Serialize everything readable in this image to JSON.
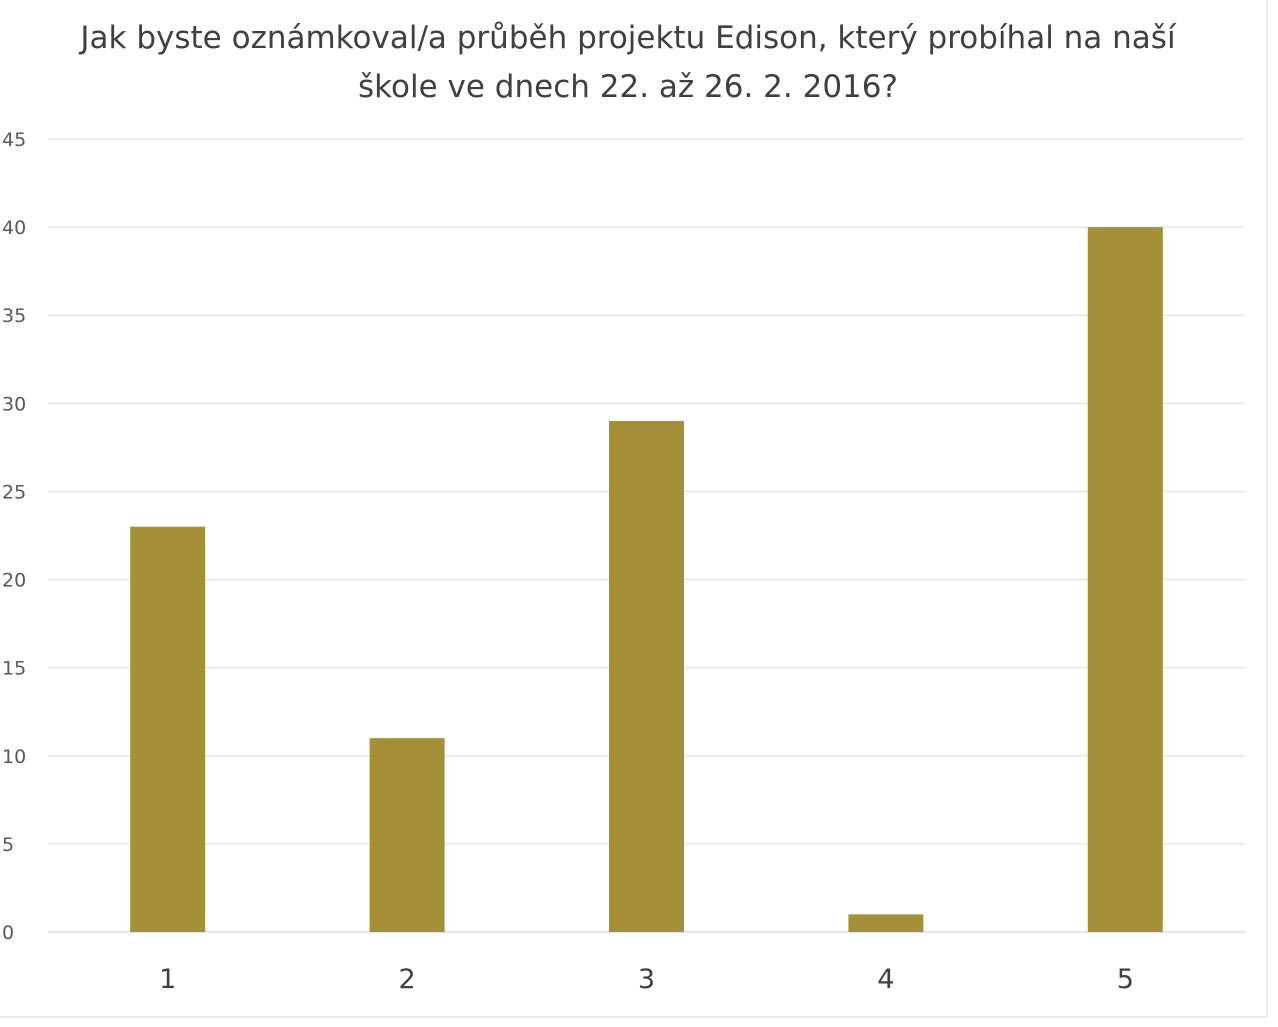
{
  "chart_data": {
    "type": "bar",
    "title_lines": [
      "Jak byste oznámkoval/a průběh projektu Edison, který probíhal na naší",
      "škole ve dnech 22. až 26. 2. 2016?"
    ],
    "categories": [
      "1",
      "2",
      "3",
      "4",
      "5"
    ],
    "values": [
      23,
      11,
      29,
      1,
      40
    ],
    "ylim": [
      0,
      45
    ],
    "yticks": [
      "0",
      "5",
      "10",
      "15",
      "20",
      "25",
      "30",
      "35",
      "40",
      "45"
    ],
    "grid": true,
    "legend": "none",
    "bar_color": "#a39038",
    "grid_color": "#e6e6e6"
  }
}
